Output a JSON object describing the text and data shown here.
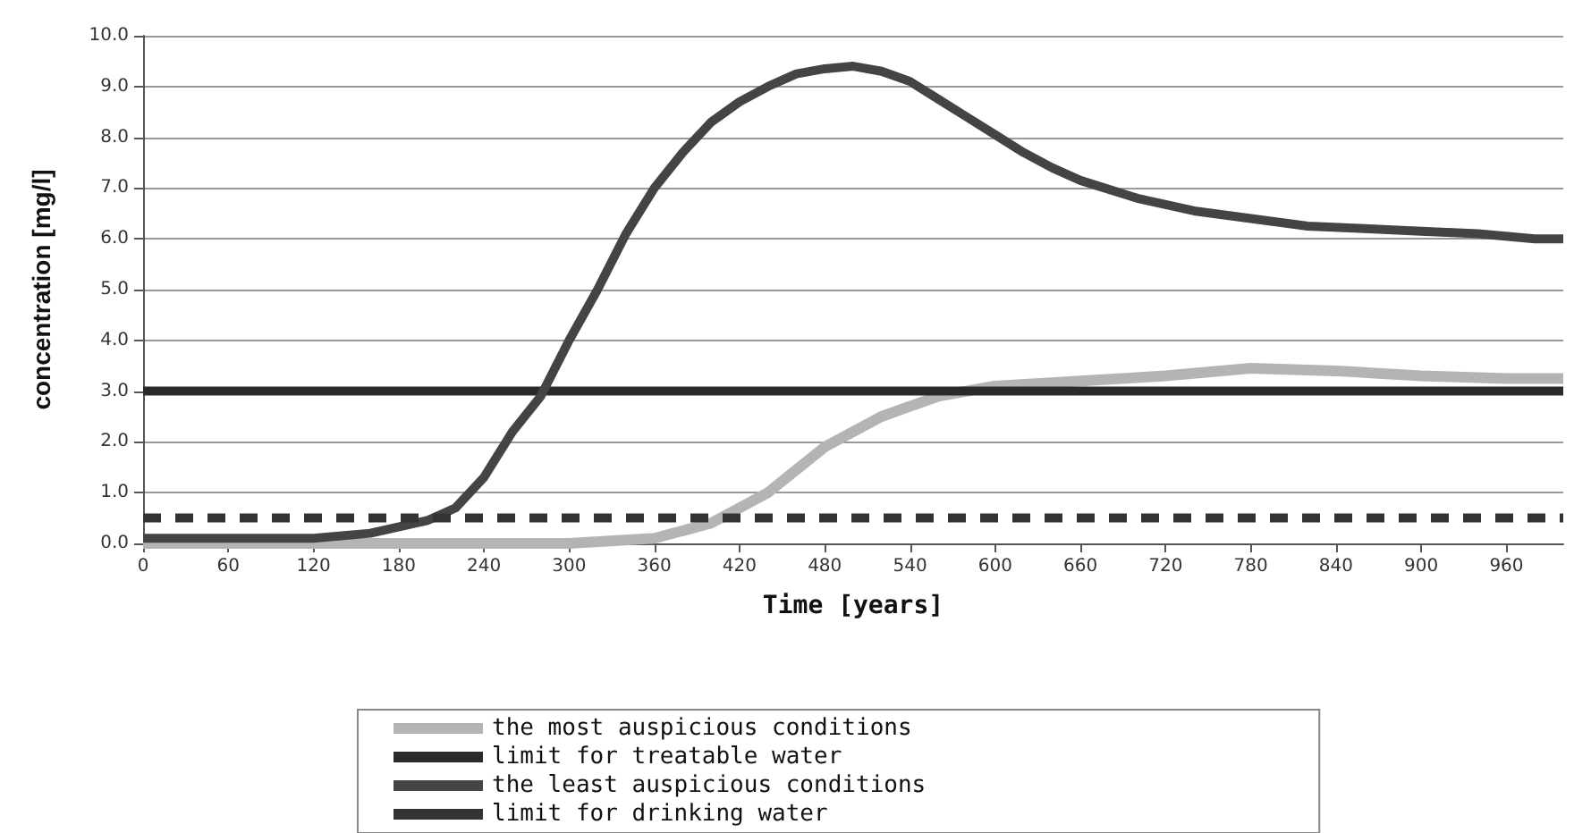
{
  "chart_data": {
    "type": "line",
    "xlabel": "Time [years]",
    "ylabel": "concentration [mg/l]",
    "xlim": [
      0,
      1000
    ],
    "xticks": [
      0,
      60,
      120,
      180,
      240,
      300,
      360,
      420,
      480,
      540,
      600,
      660,
      720,
      780,
      840,
      900,
      960
    ],
    "ylim": [
      0,
      10
    ],
    "yticks": [
      {
        "value": 0,
        "label": "0.0"
      },
      {
        "value": 1,
        "label": "1.0"
      },
      {
        "value": 2,
        "label": "2.0"
      },
      {
        "value": 3,
        "label": "3.0"
      },
      {
        "value": 4,
        "label": "4.0"
      },
      {
        "value": 5,
        "label": "5.0"
      },
      {
        "value": 6,
        "label": "6.0"
      },
      {
        "value": 7,
        "label": "7.0"
      },
      {
        "value": 8,
        "label": "8.0"
      },
      {
        "value": 9,
        "label": "9.0"
      },
      {
        "value": 10,
        "label": "10.0"
      }
    ],
    "grid": "y",
    "legend": "bottom",
    "marker": "none",
    "series": [
      {
        "name": "the most auspicious conditions",
        "color": "#b4b4b4",
        "x": [
          0,
          300,
          360,
          400,
          440,
          480,
          520,
          560,
          600,
          660,
          720,
          780,
          840,
          900,
          960,
          1000
        ],
        "values": [
          0,
          0,
          0.1,
          0.4,
          1,
          1.9,
          2.5,
          2.9,
          3.1,
          3.2,
          3.3,
          3.45,
          3.4,
          3.3,
          3.25,
          3.25
        ]
      },
      {
        "name": "limit for treatable water",
        "color": "#2a2a2a",
        "x": [
          0,
          1000
        ],
        "values": [
          3,
          3
        ]
      },
      {
        "name": "the least auspicious conditions",
        "color": "#444444",
        "x": [
          0,
          120,
          160,
          200,
          220,
          240,
          260,
          280,
          300,
          320,
          340,
          360,
          380,
          400,
          420,
          440,
          460,
          480,
          500,
          520,
          540,
          560,
          580,
          600,
          620,
          640,
          660,
          700,
          740,
          780,
          820,
          860,
          900,
          940,
          980,
          1000
        ],
        "values": [
          0.1,
          0.1,
          0.2,
          0.45,
          0.7,
          1.3,
          2.2,
          2.9,
          4,
          5,
          6.1,
          7,
          7.7,
          8.3,
          8.7,
          9,
          9.25,
          9.35,
          9.4,
          9.3,
          9.1,
          8.75,
          8.4,
          8.05,
          7.7,
          7.4,
          7.15,
          6.8,
          6.55,
          6.4,
          6.25,
          6.2,
          6.15,
          6.1,
          6,
          6
        ]
      },
      {
        "name": "limit for drinking water",
        "color": "#333333",
        "line_style": "dashed",
        "x": [
          0,
          1000
        ],
        "values": [
          0.5,
          0.5
        ]
      }
    ]
  }
}
